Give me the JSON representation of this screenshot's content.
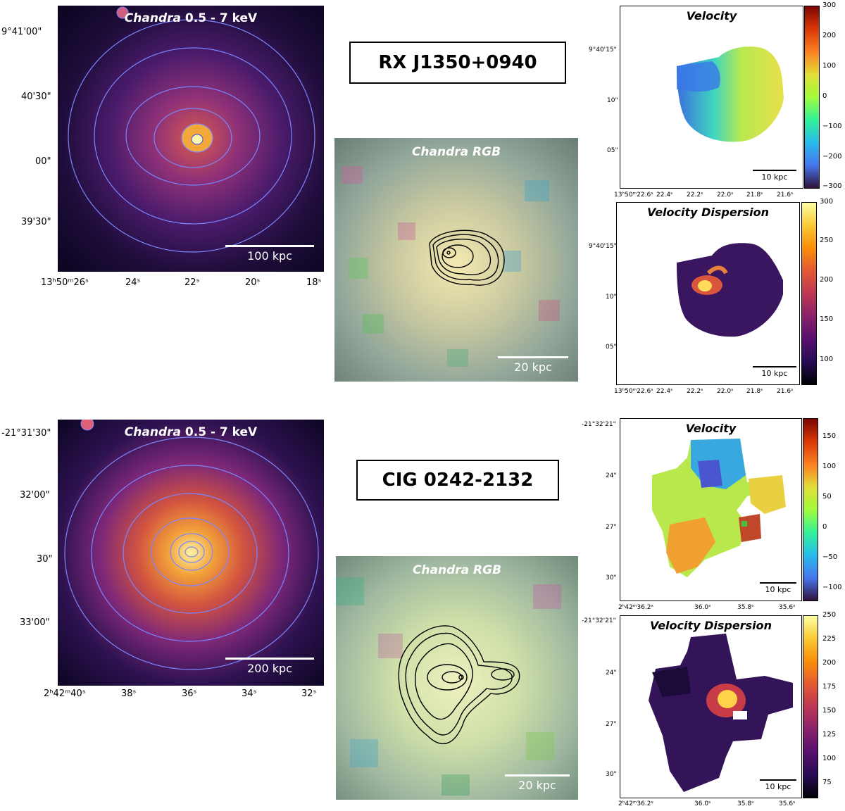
{
  "objects": [
    {
      "name": "RX J1350+0940",
      "xray": {
        "title_italic": "Chandra",
        "title_rest": " 0.5 - 7 keV",
        "scale": "100 kpc",
        "dec_ticks": [
          "9°41'00\"",
          "40'30\"",
          "00\"",
          "39'30\""
        ],
        "ra_ticks": [
          "13ʰ50ᵐ26ˢ",
          "24ˢ",
          "22ˢ",
          "20ˢ",
          "18ˢ"
        ]
      },
      "rgb": {
        "title": "Chandra RGB",
        "scale": "20 kpc"
      },
      "velocity": {
        "title": "Velocity",
        "scale": "10 kpc",
        "dec_ticks": [
          "9°40'15\"",
          "10\"",
          "05\""
        ],
        "ra_ticks": [
          "13ʰ50ᵐ22.6ˢ",
          "22.4ˢ",
          "22.2ˢ",
          "22.0ˢ",
          "21.8ˢ",
          "21.6ˢ"
        ],
        "cbar_ticks": [
          "300",
          "200",
          "100",
          "0",
          "−100",
          "−200",
          "−300"
        ]
      },
      "dispersion": {
        "title": "Velocity Dispersion",
        "scale": "10 kpc",
        "dec_ticks": [
          "9°40'15\"",
          "10\"",
          "05\""
        ],
        "ra_ticks": [
          "13ʰ50ᵐ22.6ˢ",
          "22.4ˢ",
          "22.2ˢ",
          "22.0ˢ",
          "21.8ˢ",
          "21.6ˢ"
        ],
        "cbar_ticks": [
          "300",
          "250",
          "200",
          "150",
          "100"
        ]
      }
    },
    {
      "name": "CIG 0242-2132",
      "xray": {
        "title_italic": "Chandra",
        "title_rest": " 0.5 - 7 keV",
        "scale": "200 kpc",
        "dec_ticks": [
          "-21°31'30\"",
          "32'00\"",
          "30\"",
          "33'00\""
        ],
        "ra_ticks": [
          "2ʰ42ᵐ40ˢ",
          "38ˢ",
          "36ˢ",
          "34ˢ",
          "32ˢ"
        ]
      },
      "rgb": {
        "title": "Chandra RGB",
        "scale": "20 kpc"
      },
      "velocity": {
        "title": "Velocity",
        "scale": "10 kpc",
        "dec_ticks": [
          "-21°32'21\"",
          "24\"",
          "27\"",
          "30\""
        ],
        "ra_ticks": [
          "2ʰ42ᵐ36.2ˢ",
          "36.0ˢ",
          "35.8ˢ",
          "35.6ˢ"
        ],
        "cbar_ticks": [
          "150",
          "100",
          "50",
          "0",
          "−50",
          "−100"
        ]
      },
      "dispersion": {
        "title": "Velocity Dispersion",
        "scale": "10 kpc",
        "dec_ticks": [
          "-21°32'21\"",
          "24\"",
          "27\"",
          "30\""
        ],
        "ra_ticks": [
          "2ʰ42ᵐ36.2ˢ",
          "36.0ˢ",
          "35.8ˢ",
          "35.6ˢ"
        ],
        "cbar_ticks": [
          "250",
          "225",
          "200",
          "175",
          "150",
          "125",
          "100",
          "75"
        ]
      }
    }
  ]
}
